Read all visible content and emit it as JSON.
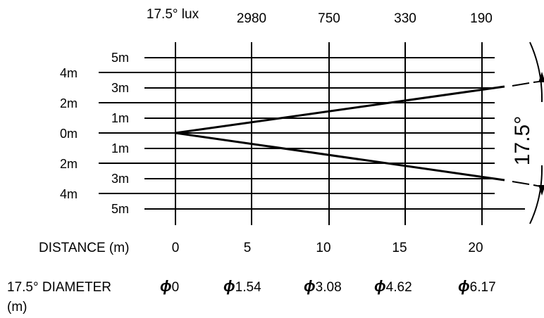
{
  "header": {
    "lux_label": "17.5° lux",
    "lux_values": [
      "2980",
      "750",
      "330",
      "190"
    ]
  },
  "left_labels": [
    {
      "text": "5m"
    },
    {
      "text": "4m"
    },
    {
      "text": "3m"
    },
    {
      "text": "2m"
    },
    {
      "text": "1m"
    },
    {
      "text": "0m"
    },
    {
      "text": "1m"
    },
    {
      "text": "2m"
    },
    {
      "text": "3m"
    },
    {
      "text": "4m"
    },
    {
      "text": "5m"
    }
  ],
  "distance": {
    "label": "DISTANCE (m)",
    "ticks": [
      "0",
      "5",
      "10",
      "15",
      "20"
    ]
  },
  "diameter": {
    "label_line1": "17.5° DIAMETER",
    "label_line2": "(m)",
    "symbol": "ϕ",
    "values": [
      "0",
      "1.54",
      "3.08",
      "4.62",
      "6.17"
    ]
  },
  "beam_angle": "17.5°",
  "colors": {
    "line": "#000000",
    "background": "#ffffff"
  }
}
